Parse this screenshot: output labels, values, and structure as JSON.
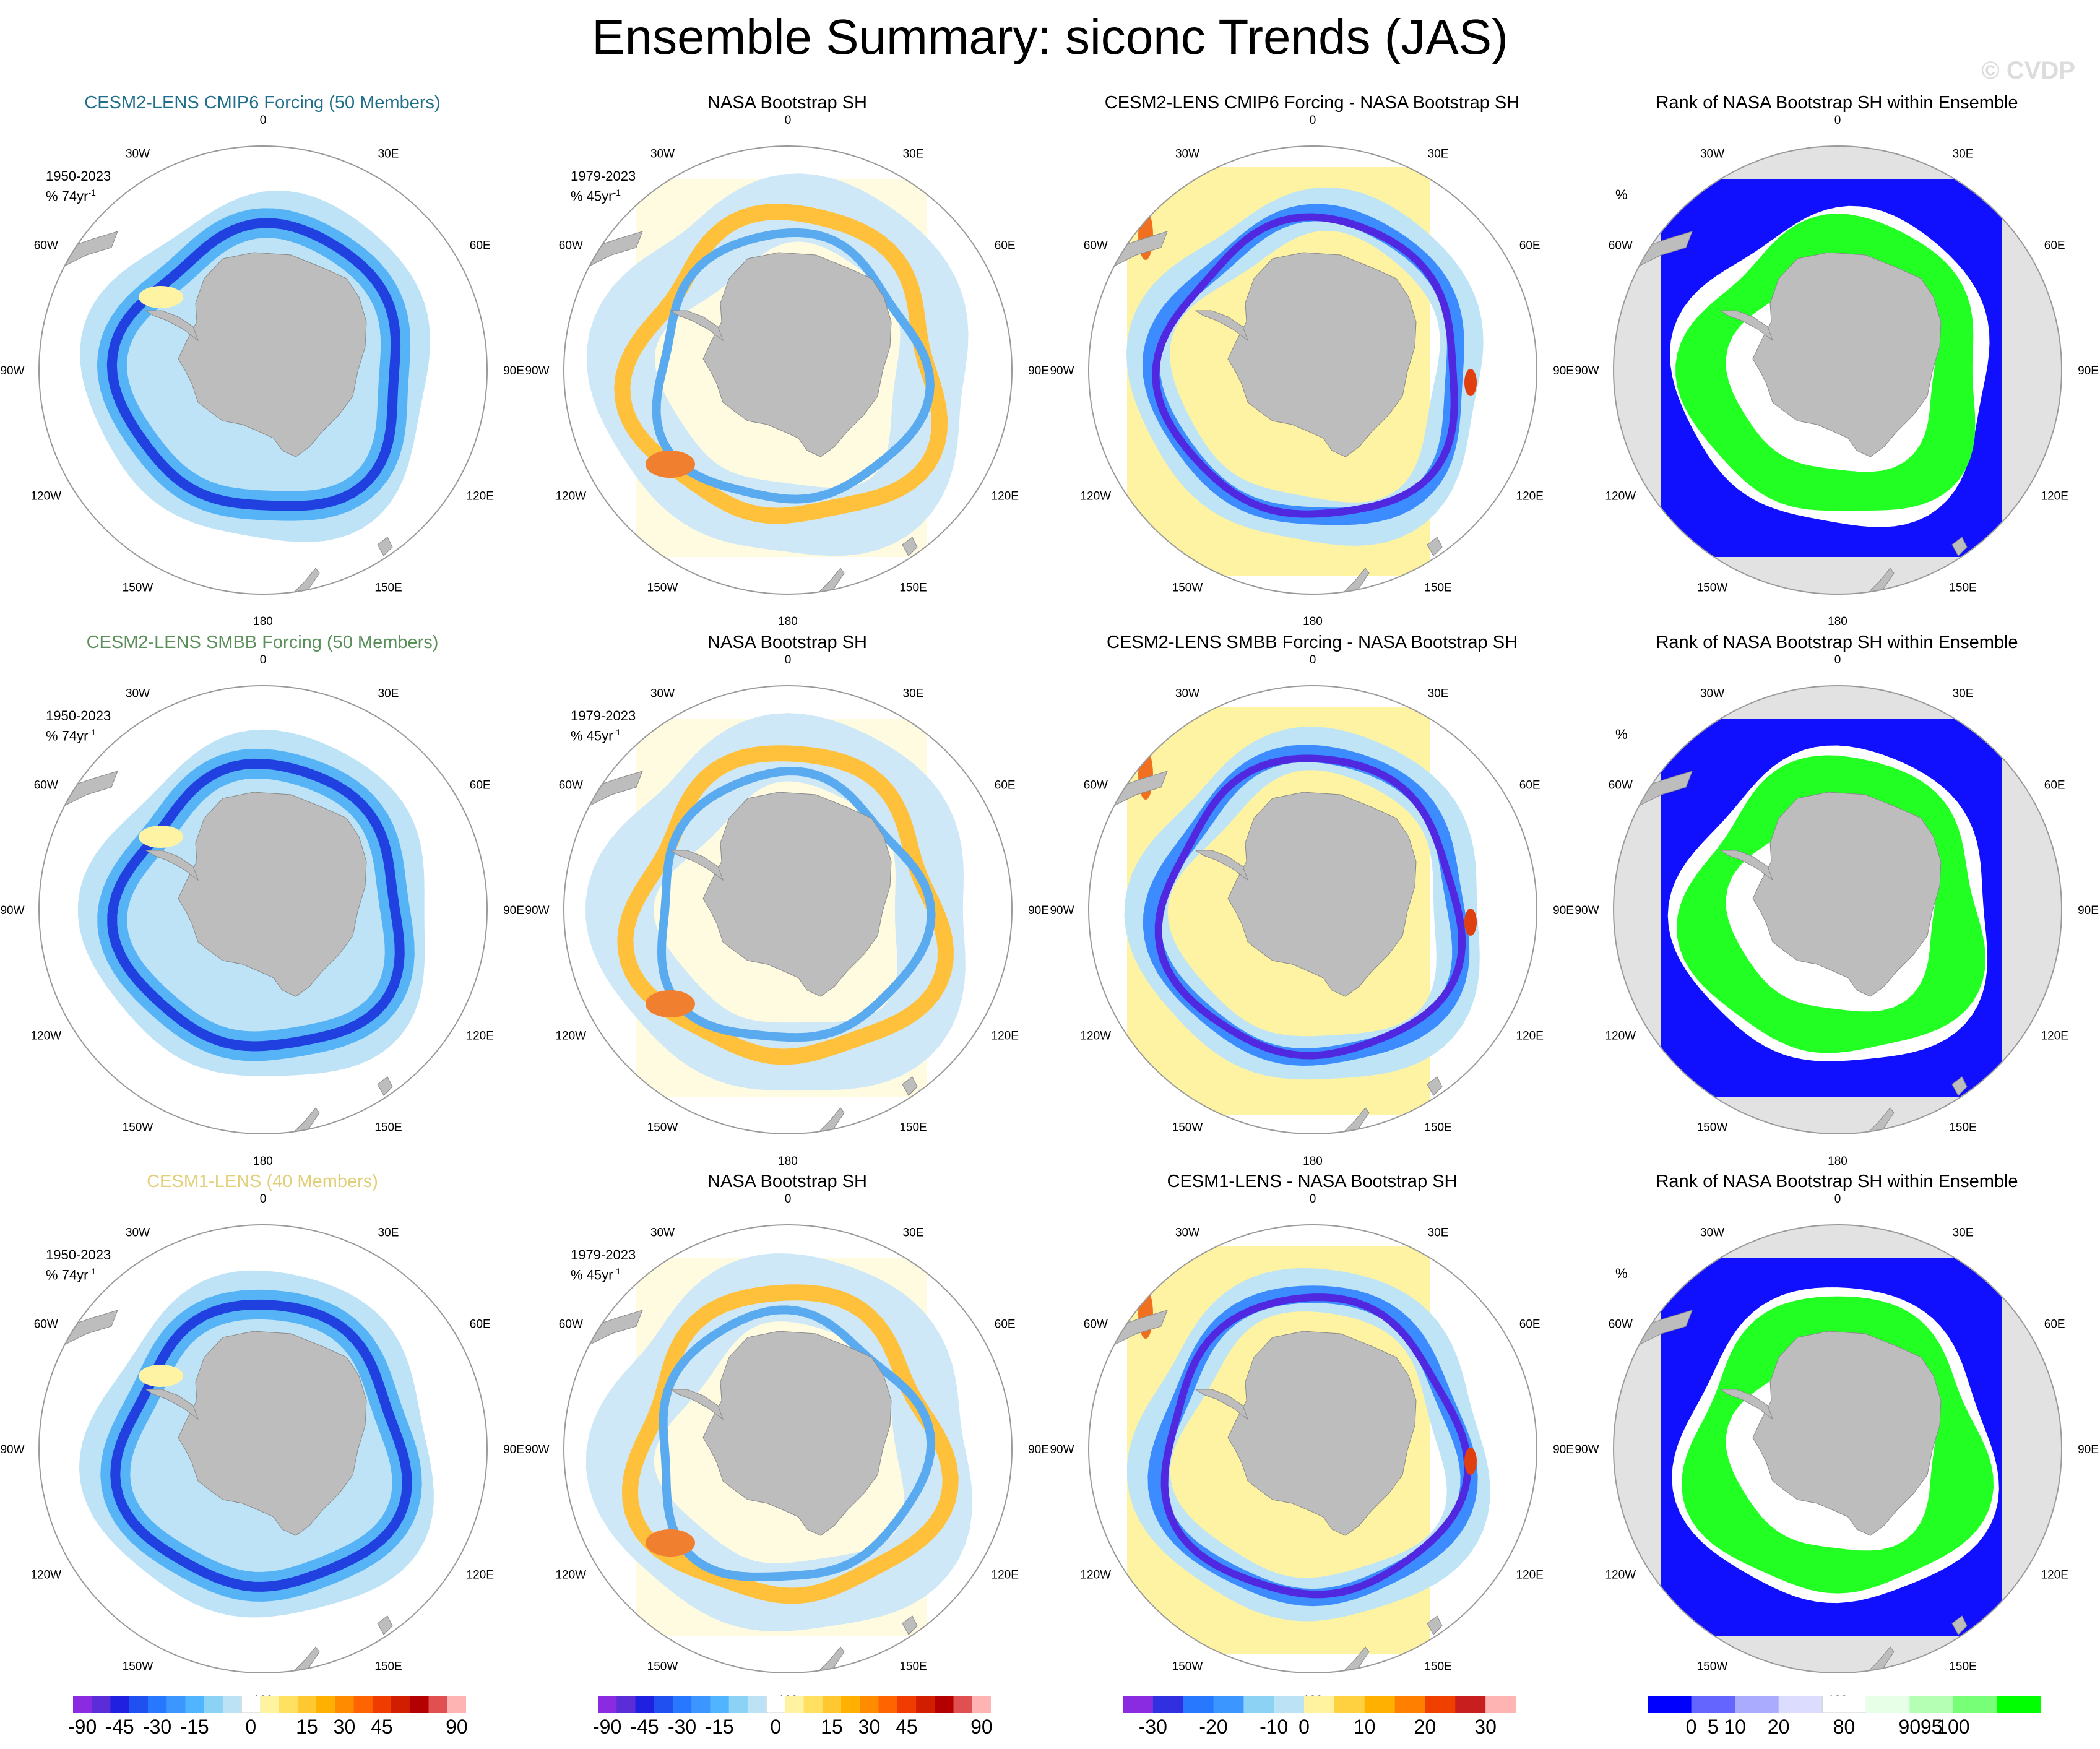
{
  "figure": {
    "title": "Ensemble Summary: siconc Trends (JAS)",
    "watermark": "© CVDP"
  },
  "panels": [
    [
      {
        "title": "CESM2-LENS CMIP6 Forcing (50 Members)",
        "title_color": "#1f6f8b",
        "period": "1950-2023",
        "unit": "% 74yr",
        "kind": "ens",
        "variant": 0
      },
      {
        "title": "NASA Bootstrap SH",
        "title_color": "#000000",
        "period": "1979-2023",
        "unit": "% 45yr",
        "kind": "obs",
        "variant": 0
      },
      {
        "title": "CESM2-LENS CMIP6 Forcing - NASA Bootstrap SH",
        "title_color": "#000000",
        "kind": "diff",
        "variant": 0
      },
      {
        "title": "Rank of NASA Bootstrap SH within Ensemble",
        "title_color": "#000000",
        "unit": "%",
        "kind": "rank",
        "variant": 0
      }
    ],
    [
      {
        "title": "CESM2-LENS SMBB Forcing (50 Members)",
        "title_color": "#5a8f5a",
        "period": "1950-2023",
        "unit": "% 74yr",
        "kind": "ens",
        "variant": 1
      },
      {
        "title": "NASA Bootstrap SH",
        "title_color": "#000000",
        "period": "1979-2023",
        "unit": "% 45yr",
        "kind": "obs",
        "variant": 1
      },
      {
        "title": "CESM2-LENS SMBB Forcing - NASA Bootstrap SH",
        "title_color": "#000000",
        "kind": "diff",
        "variant": 1
      },
      {
        "title": "Rank of NASA Bootstrap SH within Ensemble",
        "title_color": "#000000",
        "unit": "%",
        "kind": "rank",
        "variant": 1
      }
    ],
    [
      {
        "title": "CESM1-LENS (40 Members)",
        "title_color": "#e2cf7a",
        "period": "1950-2023",
        "unit": "% 74yr",
        "kind": "ens",
        "variant": 2
      },
      {
        "title": "NASA Bootstrap SH",
        "title_color": "#000000",
        "period": "1979-2023",
        "unit": "% 45yr",
        "kind": "obs",
        "variant": 2
      },
      {
        "title": "CESM1-LENS - NASA Bootstrap SH",
        "title_color": "#000000",
        "kind": "diff",
        "variant": 2
      },
      {
        "title": "Rank of NASA Bootstrap SH within Ensemble",
        "title_color": "#000000",
        "unit": "%",
        "kind": "rank",
        "variant": 2
      }
    ]
  ],
  "unit_exponent": "-1",
  "longitude_labels": [
    "0",
    "30E",
    "60E",
    "90E",
    "120E",
    "150E",
    "180",
    "150W",
    "120W",
    "90W",
    "60W",
    "30W"
  ],
  "colorbars": [
    {
      "colors": [
        "#8a2be2",
        "#5b2dd8",
        "#2020e0",
        "#2050f0",
        "#2878ff",
        "#3c96ff",
        "#50b4ff",
        "#8cd2f5",
        "#bce3f5",
        "#ffffff",
        "#fff3a0",
        "#ffe060",
        "#ffc830",
        "#ffb000",
        "#ff8c00",
        "#ff6400",
        "#f03c00",
        "#d21e00",
        "#b40000",
        "#e05050",
        "#ffb4b4"
      ],
      "labels": [
        "-90",
        "-45",
        "-30",
        "-15",
        "0",
        "15",
        "30",
        "45",
        "90"
      ],
      "label_pos": [
        0.5,
        2.5,
        4.5,
        6.5,
        9.5,
        12.5,
        14.5,
        16.5,
        20.5
      ]
    },
    {
      "colors": [
        "#8a2be2",
        "#5b2dd8",
        "#2020e0",
        "#2050f0",
        "#2878ff",
        "#3c96ff",
        "#50b4ff",
        "#8cd2f5",
        "#bce3f5",
        "#ffffff",
        "#fff3a0",
        "#ffe060",
        "#ffc830",
        "#ffb000",
        "#ff8c00",
        "#ff6400",
        "#f03c00",
        "#d21e00",
        "#b40000",
        "#e05050",
        "#ffb4b4"
      ],
      "labels": [
        "-90",
        "-45",
        "-30",
        "-15",
        "0",
        "15",
        "30",
        "45",
        "90"
      ],
      "label_pos": [
        0.5,
        2.5,
        4.5,
        6.5,
        9.5,
        12.5,
        14.5,
        16.5,
        20.5
      ]
    },
    {
      "colors": [
        "#8a2be2",
        "#3030e0",
        "#2878ff",
        "#3c96ff",
        "#8cd2f5",
        "#bce3f5",
        "#fff3a0",
        "#ffd040",
        "#ffb000",
        "#ff8000",
        "#f04000",
        "#c81e1e",
        "#ffb4b4"
      ],
      "labels": [
        "-30",
        "-20",
        "-10",
        "0",
        "10",
        "20",
        "30"
      ],
      "label_pos": [
        1,
        3,
        5,
        6,
        8,
        10,
        12
      ]
    },
    {
      "colors": [
        "#0000ff",
        "#6464ff",
        "#aaaaff",
        "#dcdcff",
        "#ffffff",
        "#e6ffe6",
        "#b4ffb4",
        "#78ff78",
        "#00ff00"
      ],
      "labels": [
        "0",
        "5",
        "10",
        "20",
        "80",
        "90",
        "95",
        "100"
      ],
      "label_pos": [
        1,
        1.5,
        2,
        3,
        4.5,
        6,
        6.5,
        7
      ]
    }
  ]
}
